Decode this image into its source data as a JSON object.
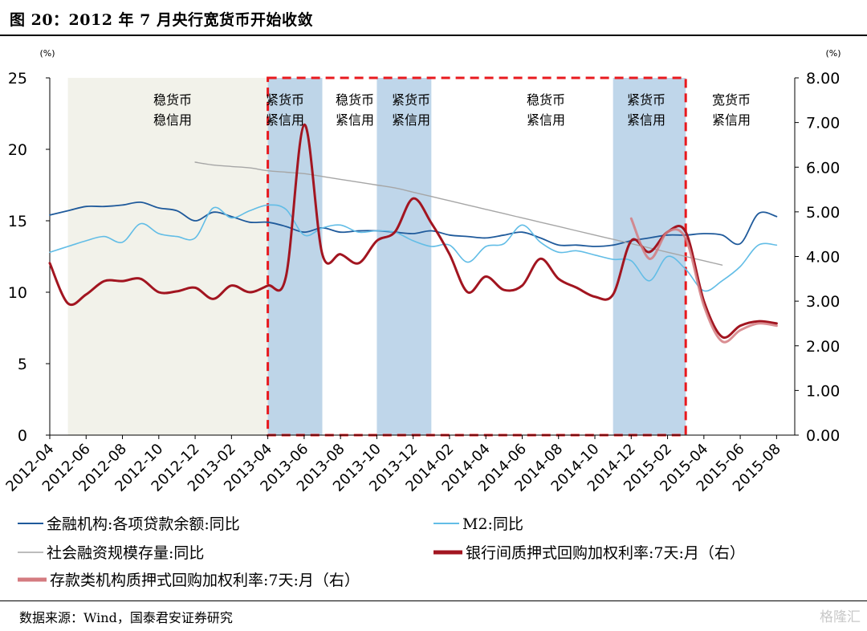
{
  "figure_title": "图 20：2012 年 7 月央行宽货币开始收敛",
  "source_text": "数据来源：Wind，国泰君安证券研究",
  "watermark": "格隆汇",
  "chart_data": {
    "type": "line",
    "x": [
      "2012-04",
      "2012-05",
      "2012-06",
      "2012-07",
      "2012-08",
      "2012-09",
      "2012-10",
      "2012-11",
      "2012-12",
      "2013-01",
      "2013-02",
      "2013-03",
      "2013-04",
      "2013-05",
      "2013-06",
      "2013-07",
      "2013-08",
      "2013-09",
      "2013-10",
      "2013-11",
      "2013-12",
      "2014-01",
      "2014-02",
      "2014-03",
      "2014-04",
      "2014-05",
      "2014-06",
      "2014-07",
      "2014-08",
      "2014-09",
      "2014-10",
      "2014-11",
      "2014-12",
      "2015-01",
      "2015-02",
      "2015-03",
      "2015-04",
      "2015-05",
      "2015-06",
      "2015-07",
      "2015-08",
      "2015-09"
    ],
    "x_tick_labels": [
      "2012-04",
      "2012-06",
      "2012-08",
      "2012-10",
      "2012-12",
      "2013-02",
      "2013-04",
      "2013-06",
      "2013-08",
      "2013-10",
      "2013-12",
      "2014-02",
      "2014-04",
      "2014-06",
      "2014-08",
      "2014-10",
      "2014-12",
      "2015-02",
      "2015-04",
      "2015-06",
      "2015-08"
    ],
    "y_left": {
      "unit_label": "(%)",
      "ylim": [
        0,
        25
      ],
      "ticks": [
        "0",
        "5",
        "10",
        "15",
        "20",
        "25"
      ]
    },
    "y_right": {
      "unit_label": "(%)",
      "ylim": [
        0,
        8
      ],
      "ticks": [
        "0.00",
        "1.00",
        "2.00",
        "3.00",
        "4.00",
        "5.00",
        "6.00",
        "7.00",
        "8.00"
      ]
    },
    "series": [
      {
        "name": "金融机构:各项贷款余额:同比",
        "axis": "left",
        "color": "#1f5a9b",
        "width": 1.8,
        "values": [
          15.4,
          15.7,
          16.0,
          16.0,
          16.1,
          16.3,
          15.9,
          15.7,
          15.0,
          15.6,
          15.3,
          14.9,
          14.9,
          14.6,
          14.2,
          14.5,
          14.2,
          14.3,
          14.3,
          14.2,
          14.1,
          14.3,
          14.0,
          13.9,
          13.8,
          14.0,
          14.2,
          13.8,
          13.3,
          13.3,
          13.2,
          13.3,
          13.6,
          13.8,
          14.0,
          14.0,
          14.1,
          14.0,
          13.4,
          15.5,
          15.3,
          null
        ]
      },
      {
        "name": "M2:同比",
        "axis": "left",
        "color": "#62bde6",
        "width": 1.6,
        "values": [
          12.8,
          13.2,
          13.6,
          13.9,
          13.5,
          14.8,
          14.1,
          13.9,
          13.8,
          15.9,
          15.2,
          15.7,
          16.1,
          15.8,
          14.0,
          14.5,
          14.7,
          14.2,
          14.3,
          14.2,
          13.6,
          13.2,
          13.3,
          12.1,
          13.2,
          13.4,
          14.7,
          13.5,
          12.8,
          12.9,
          12.6,
          12.3,
          12.2,
          10.8,
          12.5,
          11.6,
          10.1,
          10.8,
          11.8,
          13.3,
          13.3,
          null
        ]
      },
      {
        "name": "社会融资规模存量:同比",
        "axis": "left",
        "color": "#a6a6a6",
        "width": 1.4,
        "values": [
          null,
          null,
          null,
          null,
          null,
          null,
          null,
          null,
          19.1,
          18.9,
          18.8,
          18.7,
          18.5,
          18.4,
          18.3,
          18.1,
          17.9,
          17.7,
          17.5,
          17.3,
          17.0,
          16.7,
          16.4,
          16.1,
          15.8,
          15.5,
          15.2,
          14.9,
          14.6,
          14.3,
          14.0,
          13.7,
          13.4,
          13.1,
          12.8,
          12.5,
          12.2,
          11.9,
          null,
          null,
          null,
          null
        ]
      },
      {
        "name": "银行间质押式回购加权利率:7天:月（右）",
        "axis": "right",
        "color": "#a21520",
        "width": 3,
        "values": [
          3.85,
          2.95,
          3.15,
          3.45,
          3.45,
          3.5,
          3.2,
          3.22,
          3.3,
          3.05,
          3.35,
          3.2,
          3.35,
          3.55,
          6.95,
          4.05,
          4.05,
          3.85,
          4.35,
          4.55,
          5.3,
          4.75,
          4.05,
          3.2,
          3.55,
          3.25,
          3.35,
          3.95,
          3.5,
          3.3,
          3.1,
          3.15,
          4.35,
          4.1,
          4.55,
          4.55,
          3.0,
          2.2,
          2.45,
          2.55,
          2.5,
          null
        ]
      },
      {
        "name": "存款类机构质押式回购加权利率:7天:月（右）",
        "axis": "right",
        "color": "#d47b80",
        "width": 3,
        "values": [
          null,
          null,
          null,
          null,
          null,
          null,
          null,
          null,
          null,
          null,
          null,
          null,
          null,
          null,
          null,
          null,
          null,
          null,
          null,
          null,
          null,
          null,
          null,
          null,
          null,
          null,
          null,
          null,
          null,
          null,
          null,
          null,
          4.85,
          3.95,
          4.55,
          4.4,
          2.9,
          2.1,
          2.35,
          2.5,
          2.45,
          null
        ]
      }
    ],
    "regions": [
      {
        "label_1": "稳货币",
        "label_2": "稳信用",
        "from": "2012-05",
        "to": "2013-07",
        "color": "#f2f2ea"
      },
      {
        "label_1": "紧货币",
        "label_2": "紧信用",
        "from": "2013-04",
        "to": "2013-07",
        "color": "#b8d2e8"
      },
      {
        "label_1": "稳货币",
        "label_2": "紧信用",
        "from": "2013-07",
        "to": "2013-10",
        "color": null
      },
      {
        "label_1": "紧货币",
        "label_2": "紧信用",
        "from": "2013-10",
        "to": "2014-01",
        "color": "#b8d2e8"
      },
      {
        "label_1": "稳货币",
        "label_2": "紧信用",
        "from": "2014-01",
        "to": "2014-11",
        "color": null
      },
      {
        "label_1": "紧货币",
        "label_2": "紧信用",
        "from": "2014-11",
        "to": "2015-03",
        "color": "#b8d2e8"
      },
      {
        "label_1": "宽货币",
        "label_2": "紧信用",
        "from": "2015-03",
        "to": "2015-09",
        "color": null
      }
    ],
    "highlight_box": {
      "from": "2013-04",
      "to": "2015-03",
      "color": "#e8191e"
    },
    "grid": false,
    "legend_position": "bottom"
  }
}
